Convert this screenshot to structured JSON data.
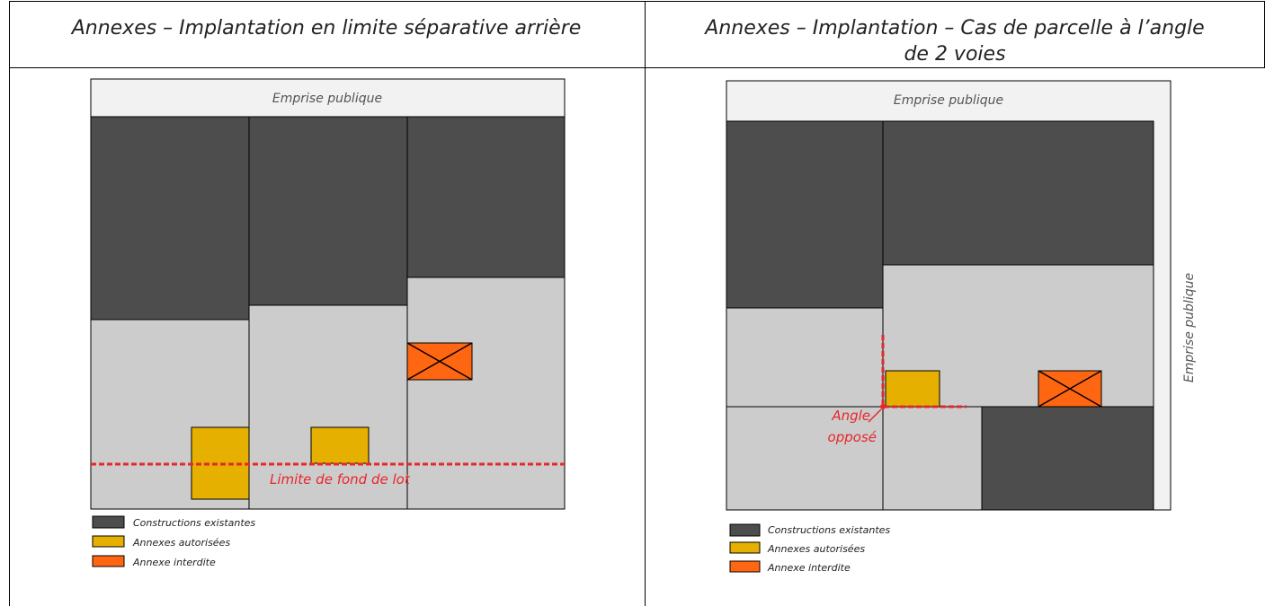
{
  "table": {
    "headers": [
      "Annexes – Implantation en limite séparative arrière",
      "Annexes – Implantation – Cas de parcelle à l’angle de 2 voies"
    ]
  },
  "diagrams": [
    {
      "top_label": "Emprise publique",
      "line_label": "Limite de fond de lot",
      "legend": [
        "Constructions existantes",
        "Annexes autorisées",
        "Annexe interdite"
      ]
    },
    {
      "top_label": "Emprise publique",
      "side_label": "Emprise publique",
      "angle_label": [
        "Angle",
        "opposé"
      ],
      "legend": [
        "Constructions existantes",
        "Annexes autorisées",
        "Annexe interdite"
      ]
    }
  ]
}
